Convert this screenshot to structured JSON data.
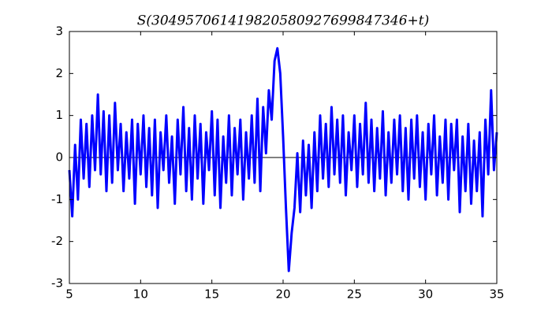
{
  "chart_data": {
    "type": "line",
    "title": "S(304957061419820580927699847346+t)",
    "x": [
      5.0,
      5.2,
      5.4,
      5.6,
      5.8,
      6.0,
      6.2,
      6.4,
      6.6,
      6.8,
      7.0,
      7.2,
      7.4,
      7.6,
      7.8,
      8.0,
      8.2,
      8.4,
      8.6,
      8.8,
      9.0,
      9.2,
      9.4,
      9.6,
      9.8,
      10.0,
      10.2,
      10.4,
      10.6,
      10.8,
      11.0,
      11.2,
      11.4,
      11.6,
      11.8,
      12.0,
      12.2,
      12.4,
      12.6,
      12.8,
      13.0,
      13.2,
      13.4,
      13.6,
      13.8,
      14.0,
      14.2,
      14.4,
      14.6,
      14.8,
      15.0,
      15.2,
      15.4,
      15.6,
      15.8,
      16.0,
      16.2,
      16.4,
      16.6,
      16.8,
      17.0,
      17.2,
      17.4,
      17.6,
      17.8,
      18.0,
      18.2,
      18.4,
      18.6,
      18.8,
      19.0,
      19.2,
      19.4,
      19.6,
      19.8,
      20.0,
      20.2,
      20.4,
      20.6,
      20.8,
      21.0,
      21.2,
      21.4,
      21.6,
      21.8,
      22.0,
      22.2,
      22.4,
      22.6,
      22.8,
      23.0,
      23.2,
      23.4,
      23.6,
      23.8,
      24.0,
      24.2,
      24.4,
      24.6,
      24.8,
      25.0,
      25.2,
      25.4,
      25.6,
      25.8,
      26.0,
      26.2,
      26.4,
      26.6,
      26.8,
      27.0,
      27.2,
      27.4,
      27.6,
      27.8,
      28.0,
      28.2,
      28.4,
      28.6,
      28.8,
      29.0,
      29.2,
      29.4,
      29.6,
      29.8,
      30.0,
      30.2,
      30.4,
      30.6,
      30.8,
      31.0,
      31.2,
      31.4,
      31.6,
      31.8,
      32.0,
      32.2,
      32.4,
      32.6,
      32.8,
      33.0,
      33.2,
      33.4,
      33.6,
      33.8,
      34.0,
      34.2,
      34.4,
      34.6,
      34.8,
      35.0
    ],
    "series": [
      {
        "color": "#0000ff",
        "values": [
          -0.3,
          -1.4,
          0.3,
          -1.0,
          0.9,
          -0.5,
          0.8,
          -0.7,
          1.0,
          -0.3,
          1.5,
          -0.4,
          1.1,
          -0.8,
          1.0,
          -0.6,
          1.3,
          -0.3,
          0.8,
          -0.8,
          0.6,
          -0.5,
          0.9,
          -1.1,
          0.8,
          -0.4,
          1.0,
          -0.7,
          0.7,
          -0.9,
          0.9,
          -1.2,
          0.6,
          -0.3,
          1.0,
          -0.6,
          0.5,
          -1.1,
          0.9,
          -0.4,
          1.2,
          -0.8,
          0.7,
          -1.0,
          1.0,
          -0.5,
          0.8,
          -1.1,
          0.6,
          -0.3,
          1.1,
          -0.9,
          0.9,
          -1.2,
          0.5,
          -0.6,
          1.0,
          -0.9,
          0.7,
          -0.4,
          0.9,
          -1.0,
          0.6,
          -0.5,
          1.0,
          -0.6,
          1.4,
          -0.8,
          1.2,
          0.1,
          1.6,
          0.9,
          2.3,
          2.6,
          2.0,
          0.5,
          -1.2,
          -2.7,
          -1.8,
          -1.2,
          0.1,
          -1.3,
          0.4,
          -0.9,
          0.3,
          -1.2,
          0.6,
          -0.8,
          1.0,
          -0.5,
          0.8,
          -0.7,
          1.2,
          -0.4,
          0.9,
          -0.6,
          1.0,
          -0.9,
          0.6,
          -0.3,
          1.0,
          -0.7,
          0.8,
          -0.4,
          1.3,
          -0.6,
          0.9,
          -0.8,
          0.7,
          -0.5,
          1.1,
          -0.9,
          0.6,
          -0.6,
          0.9,
          -0.4,
          1.0,
          -0.8,
          0.7,
          -1.0,
          0.9,
          -0.5,
          1.0,
          -0.7,
          0.6,
          -1.0,
          0.8,
          -0.4,
          1.0,
          -0.9,
          0.5,
          -0.6,
          0.9,
          -1.0,
          0.8,
          -0.3,
          0.9,
          -1.3,
          0.5,
          -0.8,
          0.8,
          -1.1,
          0.4,
          -0.8,
          0.6,
          -1.4,
          0.9,
          -0.4,
          1.6,
          -0.3,
          0.6
        ]
      }
    ],
    "hline": 0,
    "xlim": [
      5,
      35
    ],
    "xticks": [
      5,
      10,
      15,
      20,
      25,
      30,
      35
    ],
    "ylim": [
      -3,
      3
    ],
    "yticks": [
      -3,
      -2,
      -1,
      0,
      1,
      2,
      3
    ]
  }
}
